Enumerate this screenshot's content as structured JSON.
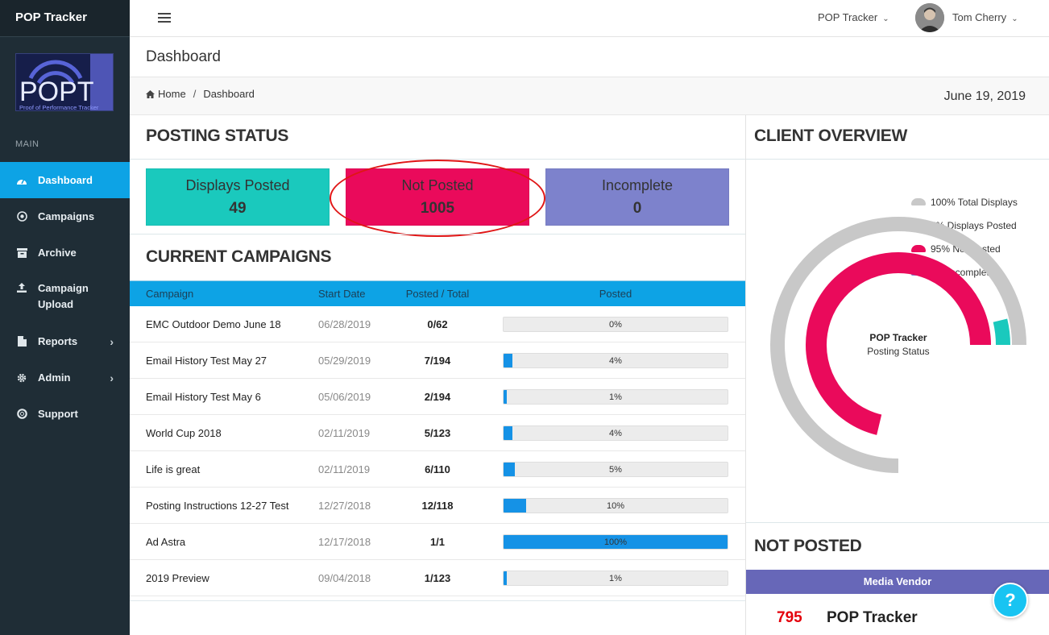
{
  "sidebar": {
    "brand": "POP Tracker",
    "logo_text": "POPT",
    "logo_tagline": "Proof of Performance Tracker",
    "section": "MAIN",
    "items": [
      {
        "label": "Dashboard",
        "icon": "dashboard-icon",
        "active": true
      },
      {
        "label": "Campaigns",
        "icon": "bullseye-icon"
      },
      {
        "label": "Archive",
        "icon": "archive-icon"
      },
      {
        "label": "Campaign Upload",
        "icon": "upload-icon"
      },
      {
        "label": "Reports",
        "icon": "file-icon",
        "chevron": true
      },
      {
        "label": "Admin",
        "icon": "gear-icon",
        "chevron": true
      },
      {
        "label": "Support",
        "icon": "life-ring-icon"
      }
    ]
  },
  "header": {
    "app_menu": "POP Tracker",
    "user_name": "Tom Cherry"
  },
  "page": {
    "title": "Dashboard",
    "breadcrumb": {
      "home": "Home",
      "current": "Dashboard"
    },
    "date": "June 19, 2019"
  },
  "posting_status": {
    "title": "POSTING STATUS",
    "cards": [
      {
        "label": "Displays Posted",
        "value": "49",
        "color": "#1ac9bd"
      },
      {
        "label": "Not Posted",
        "value": "1005",
        "color": "#ea0a5b"
      },
      {
        "label": "Incomplete",
        "value": "0",
        "color": "#7d82cc"
      }
    ]
  },
  "campaigns": {
    "title": "CURRENT CAMPAIGNS",
    "columns": {
      "campaign": "Campaign",
      "start_date": "Start Date",
      "posted_total": "Posted / Total",
      "posted": "Posted"
    },
    "rows": [
      {
        "name": "EMC Outdoor Demo June 18",
        "start": "06/28/2019",
        "posted_total": "0/62",
        "pct_label": "0%",
        "pct": 0
      },
      {
        "name": "Email History Test May 27",
        "start": "05/29/2019",
        "posted_total": "7/194",
        "pct_label": "4%",
        "pct": 4
      },
      {
        "name": "Email History Test May 6",
        "start": "05/06/2019",
        "posted_total": "2/194",
        "pct_label": "1%",
        "pct": 1
      },
      {
        "name": "World Cup 2018",
        "start": "02/11/2019",
        "posted_total": "5/123",
        "pct_label": "4%",
        "pct": 4
      },
      {
        "name": "Life is great",
        "start": "02/11/2019",
        "posted_total": "6/110",
        "pct_label": "5%",
        "pct": 5
      },
      {
        "name": "Posting Instructions 12-27 Test",
        "start": "12/27/2018",
        "posted_total": "12/118",
        "pct_label": "10%",
        "pct": 10
      },
      {
        "name": "Ad Astra",
        "start": "12/17/2018",
        "posted_total": "1/1",
        "pct_label": "100%",
        "pct": 100
      },
      {
        "name": "2019 Preview",
        "start": "09/04/2018",
        "posted_total": "1/123",
        "pct_label": "1%",
        "pct": 1
      }
    ]
  },
  "client_overview": {
    "title": "CLIENT OVERVIEW",
    "center_title": "POP Tracker",
    "center_subtitle": "Posting Status",
    "legend": [
      {
        "label": "100% Total Displays",
        "color": "#c8c8c8"
      },
      {
        "label": "5% Displays Posted",
        "color": "#1ac9bd"
      },
      {
        "label": "95% Not Posted",
        "color": "#ea0a5b"
      },
      {
        "label": "0% Incomplete",
        "color": "#7d82cc"
      }
    ]
  },
  "chart_data": {
    "type": "pie",
    "variant": "concentric-radial",
    "categories": [
      "Total Displays",
      "Displays Posted",
      "Not Posted",
      "Incomplete"
    ],
    "values": [
      100,
      5,
      95,
      0
    ],
    "unit": "%",
    "max_sweep_fraction": 0.75,
    "title": "POP Tracker",
    "subtitle": "Posting Status"
  },
  "not_posted": {
    "title": "NOT POSTED",
    "column": "Media Vendor",
    "rows": [
      {
        "count": "795",
        "vendor": "POP Tracker"
      }
    ]
  },
  "help_button": "?"
}
